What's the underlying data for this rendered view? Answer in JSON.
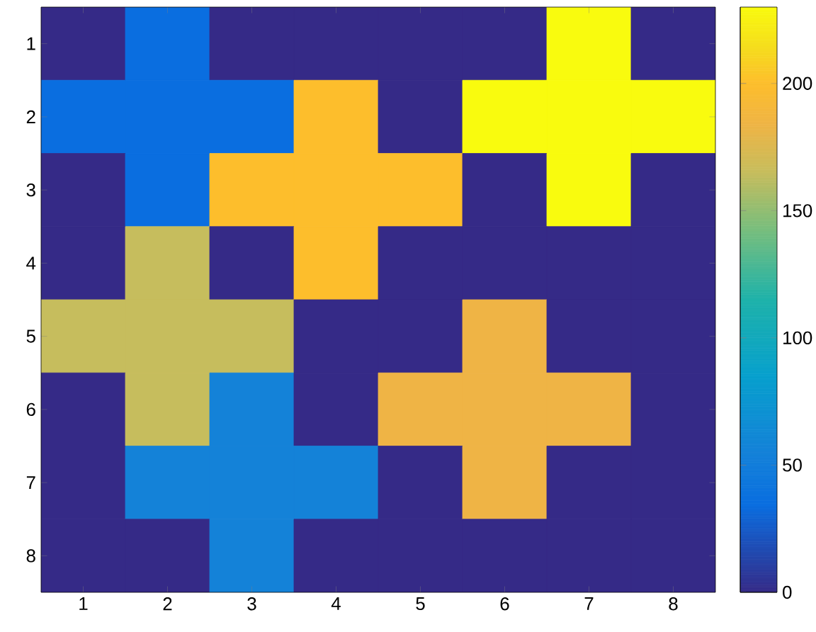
{
  "chart_data": {
    "type": "heatmap",
    "categories": [
      "1",
      "2",
      "3",
      "4",
      "5",
      "6",
      "7",
      "8"
    ],
    "y_categories": [
      "1",
      "2",
      "3",
      "4",
      "5",
      "6",
      "7",
      "8"
    ],
    "cells": [
      [
        0,
        35,
        0,
        0,
        0,
        0,
        230,
        0
      ],
      [
        35,
        35,
        35,
        200,
        0,
        230,
        230,
        230
      ],
      [
        0,
        35,
        200,
        200,
        200,
        0,
        230,
        0
      ],
      [
        0,
        165,
        0,
        200,
        0,
        0,
        0,
        0
      ],
      [
        165,
        165,
        165,
        0,
        0,
        184,
        0,
        0
      ],
      [
        0,
        165,
        55,
        0,
        184,
        184,
        184,
        0
      ],
      [
        0,
        55,
        55,
        55,
        0,
        184,
        0,
        0
      ],
      [
        0,
        0,
        55,
        0,
        0,
        0,
        0,
        0
      ]
    ],
    "clim": [
      0,
      230
    ],
    "cticks": [
      0,
      50,
      100,
      150,
      200
    ]
  }
}
